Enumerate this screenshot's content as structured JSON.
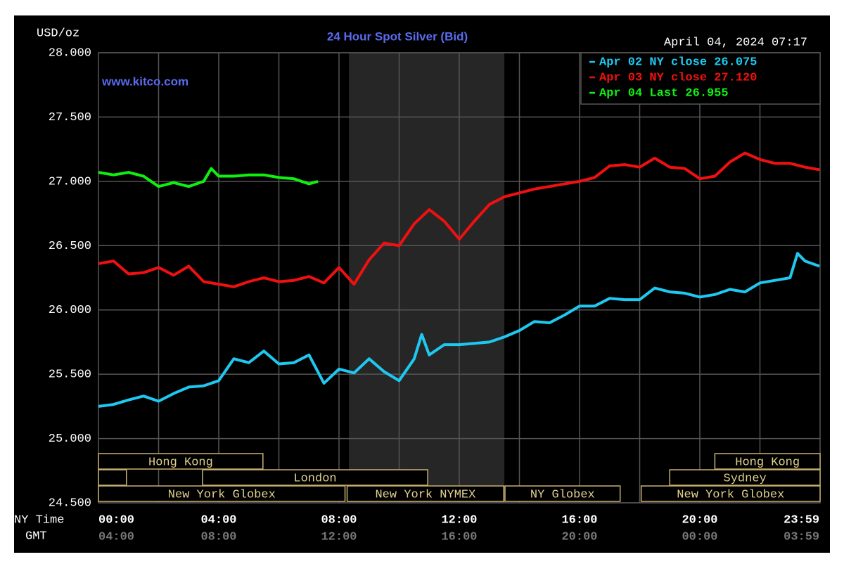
{
  "chart_data": {
    "type": "line",
    "title": "24 Hour Spot Silver (Bid)",
    "watermark": "www.kitco.com",
    "timestamp": "April 04, 2024 07:17",
    "y_label": "USD/oz",
    "x_label": "NY Time",
    "x2_label": "GMT",
    "xlim": [
      0,
      24
    ],
    "xticks": [
      {
        "value": 0,
        "label": "00:00"
      },
      {
        "value": 4,
        "label": "04:00"
      },
      {
        "value": 8,
        "label": "08:00"
      },
      {
        "value": 12,
        "label": "12:00"
      },
      {
        "value": 16,
        "label": "16:00"
      },
      {
        "value": 20,
        "label": "20:00"
      },
      {
        "value": 23.98,
        "label": "23:59"
      }
    ],
    "x2ticks": [
      "04:00",
      "08:00",
      "12:00",
      "16:00",
      "20:00",
      "00:00",
      "03:59"
    ],
    "xgrid": [
      2,
      4,
      6,
      8,
      10,
      12,
      14,
      16,
      18,
      20,
      22
    ],
    "ylim": [
      24.5,
      28
    ],
    "yticks": [
      {
        "value": 24.5,
        "label": "24.500"
      },
      {
        "value": 25,
        "label": "25.000"
      },
      {
        "value": 25.5,
        "label": "25.500"
      },
      {
        "value": 26,
        "label": "26.000"
      },
      {
        "value": 26.5,
        "label": "26.500"
      },
      {
        "value": 27,
        "label": "27.000"
      },
      {
        "value": 27.5,
        "label": "27.500"
      },
      {
        "value": 28,
        "label": "28.000"
      }
    ],
    "grid": true,
    "legend": "top-right",
    "shade": [
      8.33,
      13.5
    ],
    "sessions": [
      {
        "name": "Hong Kong",
        "start": 0,
        "end": 5.47,
        "row": 0
      },
      {
        "name": "Hong Kong",
        "start": 20.5,
        "end": 24,
        "row": 0
      },
      {
        "name": null,
        "start": 0,
        "end": 0.93,
        "row": 1
      },
      {
        "name": "London",
        "start": 3.46,
        "end": 10.95,
        "row": 1
      },
      {
        "name": "Sydney",
        "start": 19,
        "end": 24,
        "row": 1
      },
      {
        "name": "New York Globex",
        "start": 0,
        "end": 8.2,
        "row": 2
      },
      {
        "name": "New York NYMEX",
        "start": 8.27,
        "end": 13.48,
        "row": 2
      },
      {
        "name": "NY Globex",
        "start": 13.52,
        "end": 17.35,
        "row": 2
      },
      {
        "name": "New York Globex",
        "start": 18.05,
        "end": 24,
        "row": 2
      }
    ],
    "series": [
      {
        "name": "Apr 02 NY close 26.075",
        "color": "#1ec8f0",
        "x": [
          0,
          0.5,
          1,
          1.5,
          2,
          2.5,
          3,
          3.5,
          4,
          4.5,
          5,
          5.5,
          6,
          6.5,
          7,
          7.5,
          8,
          8.5,
          9,
          9.5,
          10,
          10.5,
          10.75,
          11,
          11.5,
          12,
          12.5,
          13,
          13.5,
          14,
          14.5,
          15,
          15.5,
          16,
          16.5,
          17,
          17.5,
          18,
          18.5,
          19,
          19.5,
          20,
          20.5,
          21,
          21.5,
          22,
          22.5,
          23,
          23.25,
          23.5,
          23.98
        ],
        "values": [
          25.25,
          25.265,
          25.3,
          25.33,
          25.29,
          25.35,
          25.4,
          25.41,
          25.45,
          25.62,
          25.59,
          25.68,
          25.58,
          25.59,
          25.65,
          25.43,
          25.54,
          25.51,
          25.62,
          25.52,
          25.45,
          25.62,
          25.81,
          25.65,
          25.73,
          25.73,
          25.74,
          25.75,
          25.79,
          25.84,
          25.91,
          25.9,
          25.96,
          26.03,
          26.03,
          26.09,
          26.08,
          26.08,
          26.17,
          26.14,
          26.13,
          26.1,
          26.12,
          26.16,
          26.14,
          26.21,
          26.23,
          26.25,
          26.44,
          26.38,
          26.34
        ]
      },
      {
        "name": "Apr 03 NY close 27.120",
        "color": "#f01010",
        "x": [
          0,
          0.5,
          1,
          1.5,
          2,
          2.5,
          3,
          3.5,
          4,
          4.5,
          5,
          5.5,
          6,
          6.5,
          7,
          7.5,
          8,
          8.5,
          9,
          9.5,
          10,
          10.5,
          11,
          11.5,
          12,
          12.5,
          13,
          13.5,
          14,
          14.5,
          15,
          15.5,
          16,
          16.5,
          17,
          17.5,
          18,
          18.5,
          19,
          19.5,
          20,
          20.5,
          21,
          21.5,
          22,
          22.5,
          23,
          23.5,
          23.98
        ],
        "values": [
          26.36,
          26.38,
          26.28,
          26.29,
          26.33,
          26.27,
          26.34,
          26.22,
          26.2,
          26.18,
          26.22,
          26.25,
          26.22,
          26.23,
          26.26,
          26.21,
          26.33,
          26.2,
          26.39,
          26.52,
          26.5,
          26.67,
          26.78,
          26.69,
          26.55,
          26.69,
          26.82,
          26.88,
          26.91,
          26.94,
          26.96,
          26.98,
          27.0,
          27.03,
          27.12,
          27.13,
          27.11,
          27.18,
          27.11,
          27.1,
          27.02,
          27.04,
          27.15,
          27.22,
          27.17,
          27.14,
          27.14,
          27.11,
          27.09
        ]
      },
      {
        "name": "Apr 04 Last 26.955",
        "color": "#10f010",
        "x": [
          0,
          0.5,
          1,
          1.5,
          2,
          2.5,
          3,
          3.5,
          3.75,
          4,
          4.5,
          5,
          5.5,
          6,
          6.5,
          7,
          7.3
        ],
        "values": [
          27.07,
          27.05,
          27.07,
          27.04,
          26.96,
          26.99,
          26.96,
          27.0,
          27.1,
          27.04,
          27.04,
          27.05,
          27.05,
          27.03,
          27.02,
          26.98,
          27.0
        ]
      }
    ]
  }
}
